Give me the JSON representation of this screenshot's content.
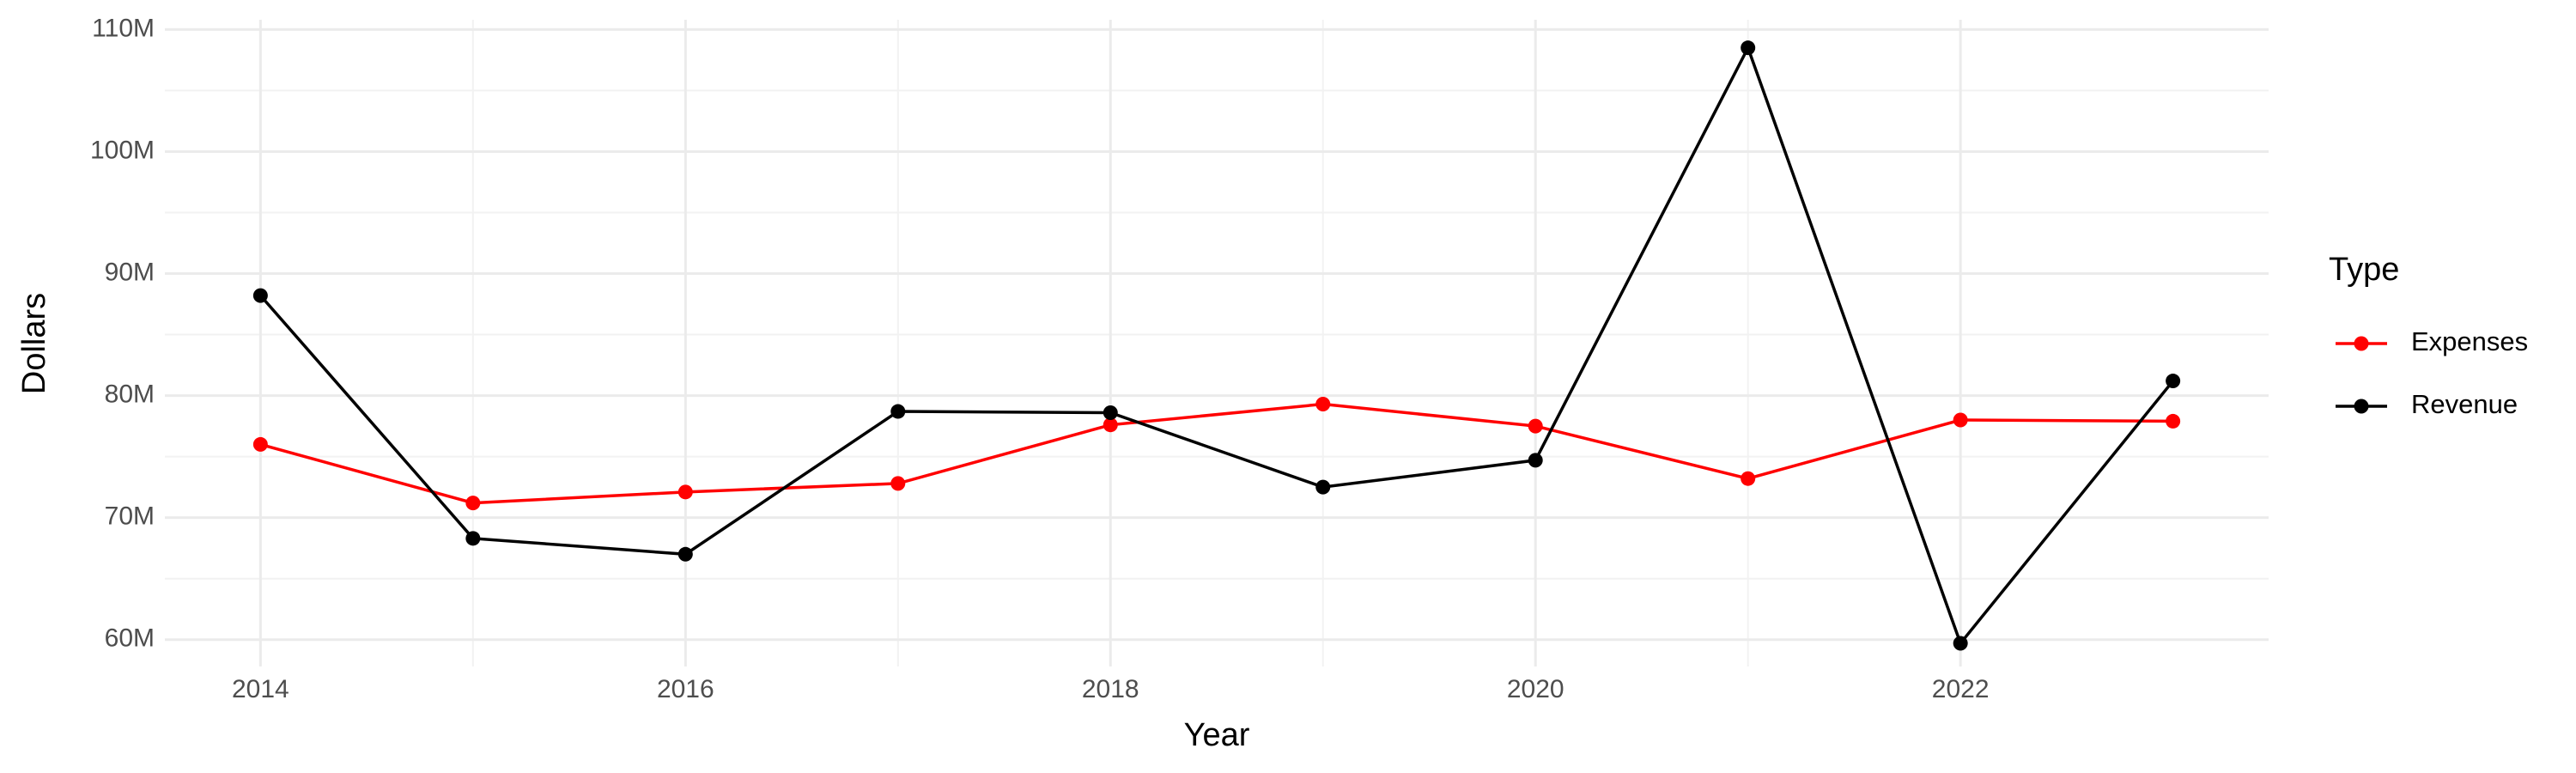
{
  "chart_data": {
    "type": "line",
    "x_label": "Year",
    "y_label": "Dollars",
    "legend_title": "Type",
    "legend": "right",
    "grid": true,
    "x": [
      2014,
      2015,
      2016,
      2017,
      2018,
      2019,
      2020,
      2021,
      2022,
      2023
    ],
    "series": [
      {
        "name": "Expenses",
        "color": "#ff0000",
        "values": [
          76000000,
          71200000,
          72100000,
          72800000,
          77600000,
          79300000,
          77500000,
          73200000,
          78000000,
          77900000
        ]
      },
      {
        "name": "Revenue",
        "color": "#000000",
        "values": [
          88200000,
          68300000,
          67000000,
          78700000,
          78600000,
          72500000,
          74700000,
          108500000,
          59700000,
          81200000
        ]
      }
    ],
    "xlim": [
      2013.55,
      2023.45
    ],
    "xticks": [
      2014,
      2016,
      2018,
      2020,
      2022
    ],
    "ylim": [
      57800000,
      110800000
    ],
    "yticks": [
      {
        "value": 60000000,
        "label": "60M"
      },
      {
        "value": 70000000,
        "label": "70M"
      },
      {
        "value": 80000000,
        "label": "80M"
      },
      {
        "value": 90000000,
        "label": "90M"
      },
      {
        "value": 100000000,
        "label": "100M"
      },
      {
        "value": 110000000,
        "label": "110M"
      }
    ]
  }
}
